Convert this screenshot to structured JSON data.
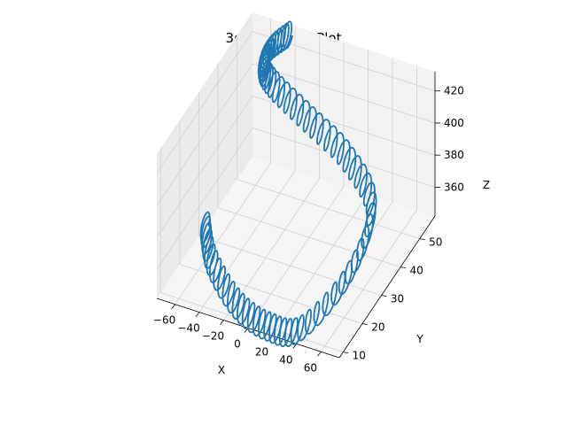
{
  "chart_data": {
    "type": "line",
    "title": "3d Trajectory Plot",
    "xlabel": "X",
    "ylabel": "Y",
    "zlabel": "Z",
    "xlim": [
      -75,
      75
    ],
    "ylim": [
      8,
      58
    ],
    "zlim": [
      342,
      432
    ],
    "xticks": [
      -60,
      -40,
      -20,
      0,
      20,
      40,
      60
    ],
    "yticks": [
      10,
      20,
      30,
      40,
      50
    ],
    "zticks": [
      360,
      380,
      400,
      420
    ],
    "grid": true,
    "series": [
      {
        "color": "#1f77b4",
        "path": {
          "shape": "helix",
          "turns": 70,
          "radius_xy": 3,
          "radius_z": 6,
          "center": [
            [
              -70,
              30,
              350
            ],
            [
              -50,
              21,
              348
            ],
            [
              -15,
              12,
              346
            ],
            [
              15,
              9,
              345
            ],
            [
              40,
              10,
              348
            ],
            [
              55,
              25,
              358
            ],
            [
              48,
              42,
              368
            ],
            [
              15,
              50,
              378
            ],
            [
              -20,
              52,
              390
            ],
            [
              -50,
              53,
              402
            ],
            [
              -60,
              54,
              410
            ],
            [
              -55,
              55,
              420
            ],
            [
              -42,
              56,
              430
            ]
          ]
        }
      }
    ]
  }
}
